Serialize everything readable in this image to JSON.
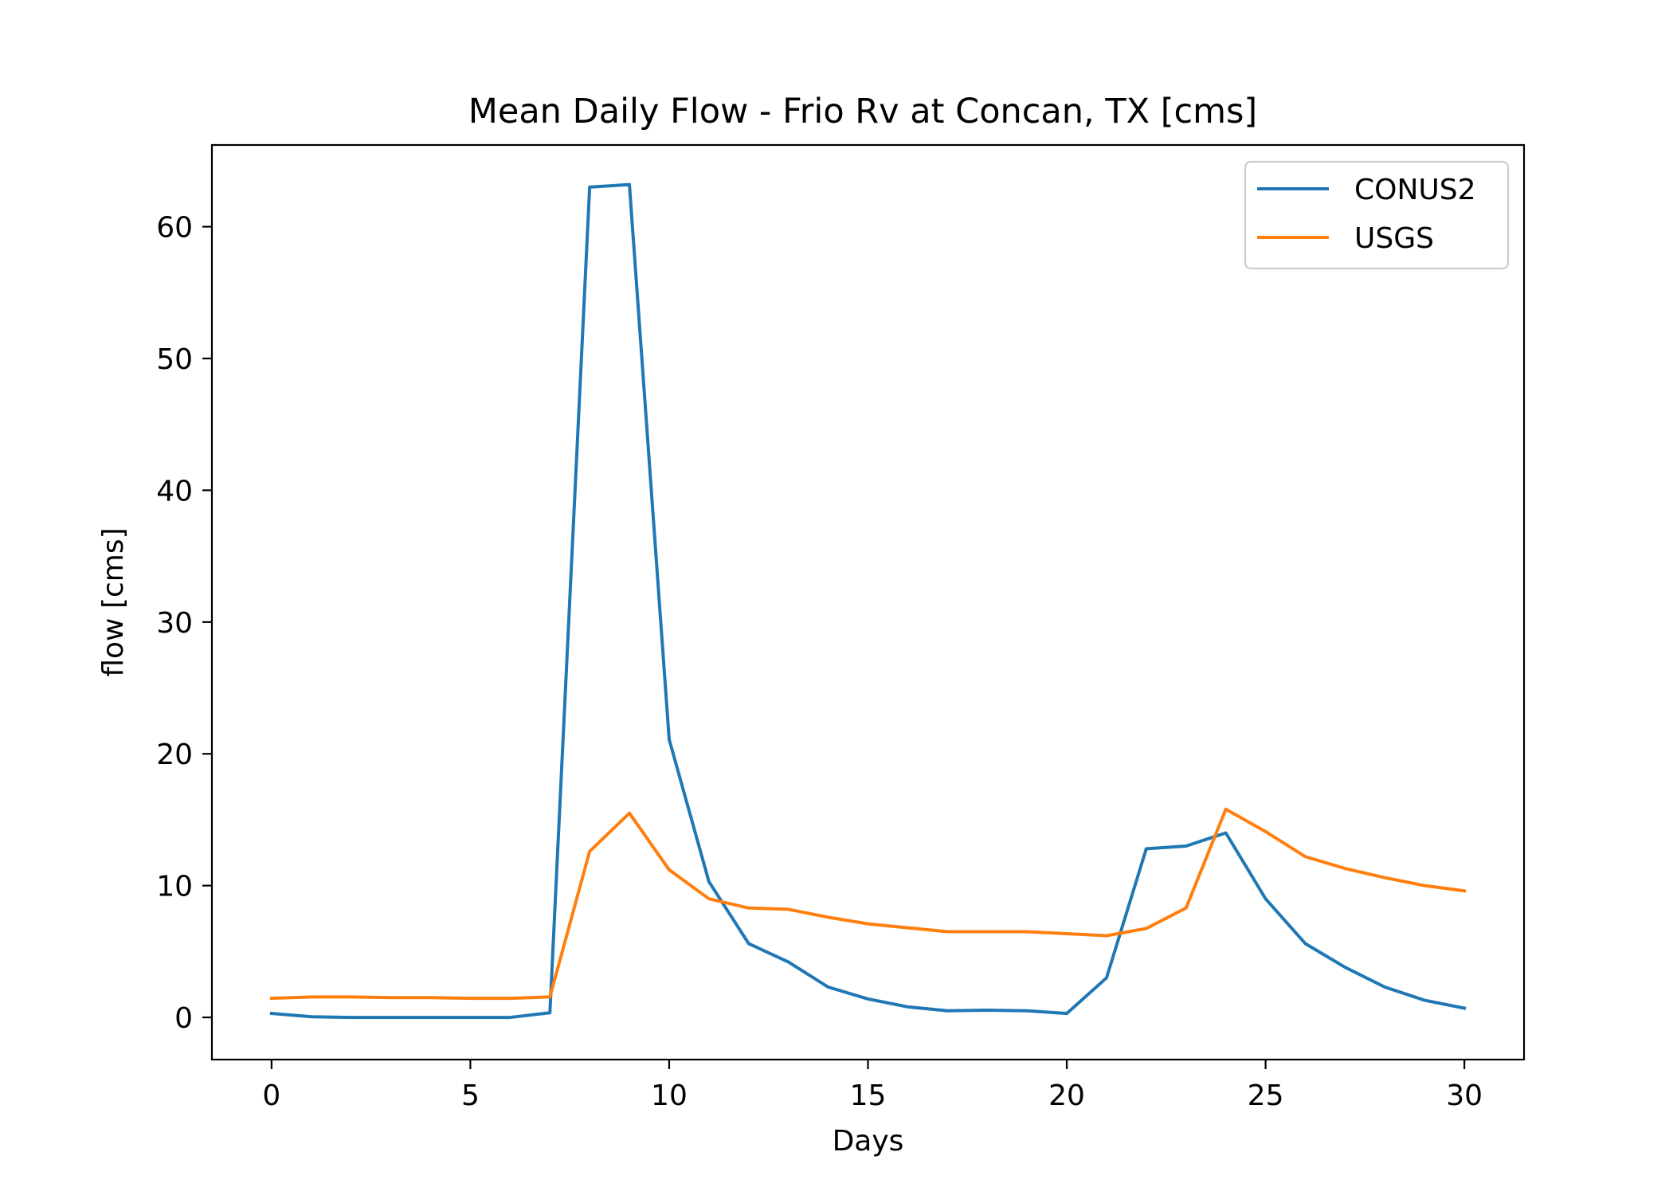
{
  "chart_data": {
    "type": "line",
    "title": "Mean Daily Flow - Frio Rv at Concan, TX [cms]",
    "xlabel": "Days",
    "ylabel": "flow [cms]",
    "xlim": [
      -1.5,
      31.5
    ],
    "ylim": [
      -3.2,
      66.2
    ],
    "xticks": [
      0,
      5,
      10,
      15,
      20,
      25,
      30
    ],
    "yticks": [
      0,
      10,
      20,
      30,
      40,
      50,
      60
    ],
    "grid": false,
    "legend": "top-right",
    "x": [
      0,
      1,
      2,
      3,
      4,
      5,
      6,
      7,
      8,
      9,
      10,
      11,
      12,
      13,
      14,
      15,
      16,
      17,
      18,
      19,
      20,
      21,
      22,
      23,
      24,
      25,
      26,
      27,
      28,
      29,
      30
    ],
    "series": [
      {
        "name": "CONUS2",
        "color": "#1f77b4",
        "values": [
          0.3,
          0.05,
          0.0,
          0.0,
          0.0,
          0.0,
          0.0,
          0.35,
          63.0,
          63.2,
          21.1,
          10.3,
          5.6,
          4.2,
          2.3,
          1.4,
          0.8,
          0.5,
          0.55,
          0.5,
          0.3,
          3.0,
          12.8,
          13.0,
          14.0,
          9.0,
          5.6,
          3.8,
          2.3,
          1.3,
          0.7
        ]
      },
      {
        "name": "USGS",
        "color": "#ff7f0e",
        "values": [
          1.45,
          1.55,
          1.55,
          1.5,
          1.5,
          1.45,
          1.45,
          1.55,
          12.6,
          15.5,
          11.2,
          9.0,
          8.3,
          8.2,
          7.6,
          7.1,
          6.8,
          6.5,
          6.5,
          6.5,
          6.35,
          6.2,
          6.75,
          8.3,
          15.8,
          14.1,
          12.2,
          11.3,
          10.6,
          10.0,
          9.6
        ]
      }
    ]
  }
}
